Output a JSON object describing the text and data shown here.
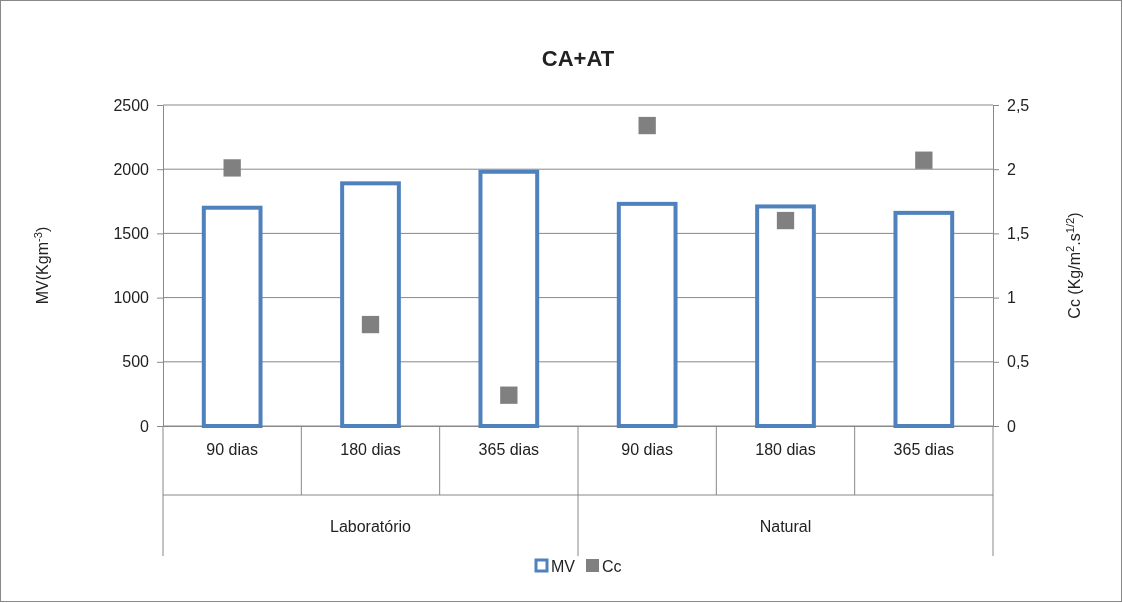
{
  "chart_data": {
    "type": "bar",
    "title": "CA+AT",
    "ylabel": "MV(Kgm$^{-3}$)",
    "y2label": "Cc (Kg/m$^{2}$.s$^{1/2}$)",
    "categories": [
      "90 dias",
      "180 dias",
      "365 dias",
      "90 dias",
      "180 dias",
      "365 dias"
    ],
    "annotations": [
      "Laboratório",
      "Natural"
    ],
    "series": [
      {
        "name": "MV",
        "color": "#4f81bd",
        "values": [
          1700,
          1890,
          1980,
          1730,
          1710,
          1660
        ]
      },
      {
        "name": "Cc",
        "type": "scatter",
        "axis": "y2",
        "marker": "square",
        "color": "#808080",
        "values": [
          2.01,
          0.79,
          0.24,
          2.34,
          1.6,
          2.07
        ]
      }
    ],
    "ylim": [
      0,
      2500
    ],
    "yticks": [
      0,
      500,
      1000,
      1500,
      2000,
      2500
    ],
    "y2lim": [
      0,
      2.5
    ],
    "y2ticks": [
      0,
      {
        "value": 0.5,
        "label": "0,5"
      },
      1,
      {
        "value": 1.5,
        "label": "1,5"
      },
      2,
      {
        "value": 2.5,
        "label": "2,5"
      }
    ],
    "grid": "y",
    "legend": "bottom"
  }
}
